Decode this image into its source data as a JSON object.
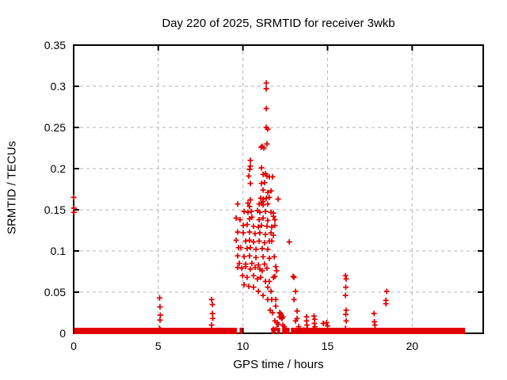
{
  "chart_data": {
    "type": "scatter",
    "title": "Day 220 of 2025, SRMTID for receiver 3wkb",
    "xlabel": "GPS time / hours",
    "ylabel": "SRMTID / TECUs",
    "xlim": [
      0,
      24.2
    ],
    "ylim": [
      0,
      0.35
    ],
    "xticks": [
      0,
      5,
      10,
      15,
      20
    ],
    "xtick_labels": [
      "0",
      "5",
      "10",
      "15",
      "20"
    ],
    "yticks": [
      0,
      0.05,
      0.1,
      0.15,
      0.2,
      0.25,
      0.3,
      0.35
    ],
    "ytick_labels": [
      "0",
      "0.05",
      "0.1",
      "0.15",
      "0.2",
      "0.25",
      "0.3",
      "0.35"
    ],
    "grid": true,
    "legend": "none",
    "marker": {
      "shape": "plus",
      "size": 7
    },
    "colors": {
      "marker": "#e10000",
      "grid": "#b3b3b3",
      "axis": "#000000",
      "background": "#ffffff"
    },
    "series": [
      {
        "name": "SRMTID",
        "points": [
          [
            0.0,
            0.165
          ],
          [
            0.02,
            0.152
          ],
          [
            0.02,
            0.147
          ],
          [
            5.08,
            0.043
          ],
          [
            5.1,
            0.032
          ],
          [
            5.12,
            0.022
          ],
          [
            5.1,
            0.016
          ],
          [
            5.08,
            0.006
          ],
          [
            5.12,
            0.004
          ],
          [
            8.15,
            0.041
          ],
          [
            8.2,
            0.035
          ],
          [
            8.2,
            0.024
          ],
          [
            8.22,
            0.018
          ],
          [
            8.15,
            0.01
          ],
          [
            9.6,
            0.14
          ],
          [
            9.6,
            0.113
          ],
          [
            9.69,
            0.157
          ],
          [
            9.69,
            0.123
          ],
          [
            9.69,
            0.094
          ],
          [
            9.69,
            0.08
          ],
          [
            9.74,
            0.104
          ],
          [
            9.79,
            0.085
          ],
          [
            9.83,
            0.138
          ],
          [
            9.88,
            0.104
          ],
          [
            9.93,
            0.079
          ],
          [
            9.98,
            0.07
          ],
          [
            10.02,
            0.131
          ],
          [
            10.02,
            0.122
          ],
          [
            10.07,
            0.148
          ],
          [
            10.07,
            0.093
          ],
          [
            10.07,
            0.059
          ],
          [
            10.16,
            0.112
          ],
          [
            10.16,
            0.084
          ],
          [
            10.16,
            0.081
          ],
          [
            10.25,
            0.132
          ],
          [
            10.25,
            0.103
          ],
          [
            10.25,
            0.068
          ],
          [
            10.3,
            0.158
          ],
          [
            10.3,
            0.147
          ],
          [
            10.35,
            0.191
          ],
          [
            10.35,
            0.057
          ],
          [
            10.39,
            0.199
          ],
          [
            10.39,
            0.154
          ],
          [
            10.39,
            0.139
          ],
          [
            10.39,
            0.123
          ],
          [
            10.39,
            0.113
          ],
          [
            10.39,
            0.094
          ],
          [
            10.44,
            0.21
          ],
          [
            10.44,
            0.203
          ],
          [
            10.44,
            0.182
          ],
          [
            10.44,
            0.162
          ],
          [
            10.44,
            0.104
          ],
          [
            10.44,
            0.078
          ],
          [
            10.49,
            0.148
          ],
          [
            10.53,
            0.141
          ],
          [
            10.53,
            0.085
          ],
          [
            10.63,
            0.13
          ],
          [
            10.63,
            0.111
          ],
          [
            10.63,
            0.07
          ],
          [
            10.63,
            0.056
          ],
          [
            10.72,
            0.121
          ],
          [
            10.72,
            0.08
          ],
          [
            10.77,
            0.102
          ],
          [
            10.77,
            0.092
          ],
          [
            10.86,
            0.149
          ],
          [
            10.86,
            0.066
          ],
          [
            10.91,
            0.129
          ],
          [
            10.91,
            0.083
          ],
          [
            10.91,
            0.051
          ],
          [
            10.96,
            0.157
          ],
          [
            10.96,
            0.138
          ],
          [
            10.96,
            0.112
          ],
          [
            11.0,
            0.147
          ],
          [
            11.0,
            0.122
          ],
          [
            11.0,
            0.078
          ],
          [
            11.05,
            0.164
          ],
          [
            11.05,
            0.068
          ],
          [
            11.08,
            0.226
          ],
          [
            11.1,
            0.201
          ],
          [
            11.1,
            0.182
          ],
          [
            11.1,
            0.158
          ],
          [
            11.1,
            0.131
          ],
          [
            11.14,
            0.227
          ],
          [
            11.14,
            0.103
          ],
          [
            11.14,
            0.076
          ],
          [
            11.19,
            0.193
          ],
          [
            11.19,
            0.174
          ],
          [
            11.19,
            0.163
          ],
          [
            11.19,
            0.16
          ],
          [
            11.19,
            0.156
          ],
          [
            11.19,
            0.14
          ],
          [
            11.19,
            0.093
          ],
          [
            11.19,
            0.046
          ],
          [
            11.24,
            0.225
          ],
          [
            11.28,
            0.183
          ],
          [
            11.28,
            0.11
          ],
          [
            11.28,
            0.084
          ],
          [
            11.33,
            0.194
          ],
          [
            11.33,
            0.148
          ],
          [
            11.33,
            0.12
          ],
          [
            11.33,
            0.063
          ],
          [
            11.38,
            0.304
          ],
          [
            11.38,
            0.297
          ],
          [
            11.38,
            0.273
          ],
          [
            11.38,
            0.25
          ],
          [
            11.38,
            0.164
          ],
          [
            11.42,
            0.23
          ],
          [
            11.42,
            0.191
          ],
          [
            11.42,
            0.13
          ],
          [
            11.42,
            0.079
          ],
          [
            11.47,
            0.248
          ],
          [
            11.47,
            0.171
          ],
          [
            11.47,
            0.157
          ],
          [
            11.47,
            0.137
          ],
          [
            11.47,
            0.102
          ],
          [
            11.47,
            0.056
          ],
          [
            11.47,
            0.041
          ],
          [
            11.56,
            0.19
          ],
          [
            11.56,
            0.165
          ],
          [
            11.56,
            0.112
          ],
          [
            11.56,
            0.091
          ],
          [
            11.56,
            0.063
          ],
          [
            11.61,
            0.028
          ],
          [
            11.66,
            0.173
          ],
          [
            11.66,
            0.147
          ],
          [
            11.66,
            0.122
          ],
          [
            11.66,
            0.051
          ],
          [
            11.7,
            0.129
          ],
          [
            11.7,
            0.112
          ],
          [
            11.7,
            0.041
          ],
          [
            11.75,
            0.19
          ],
          [
            11.75,
            0.025
          ],
          [
            11.8,
            0.146
          ],
          [
            11.8,
            0.142
          ],
          [
            11.8,
            0.119
          ],
          [
            11.8,
            0.068
          ],
          [
            11.8,
            0.005
          ],
          [
            11.85,
            0.093
          ],
          [
            11.89,
            0.138
          ],
          [
            11.89,
            0.131
          ],
          [
            11.89,
            0.069
          ],
          [
            11.89,
            0.015
          ],
          [
            11.9,
            0.004
          ],
          [
            11.94,
            0.081
          ],
          [
            11.94,
            0.041
          ],
          [
            11.94,
            0.033
          ],
          [
            11.99,
            0.076
          ],
          [
            12.0,
            0.006
          ],
          [
            12.03,
            0.013
          ],
          [
            12.08,
            0.163
          ],
          [
            12.08,
            0.011
          ],
          [
            12.17,
            0.025
          ],
          [
            12.17,
            0.02
          ],
          [
            12.22,
            0.024
          ],
          [
            12.27,
            0.022
          ],
          [
            12.27,
            0.019
          ],
          [
            12.31,
            0.018
          ],
          [
            12.36,
            0.02
          ],
          [
            12.36,
            0.01
          ],
          [
            12.45,
            0.008
          ],
          [
            12.5,
            0.004
          ],
          [
            12.74,
            0.111
          ],
          [
            12.97,
            0.069
          ],
          [
            13.02,
            0.068
          ],
          [
            13.02,
            0.041
          ],
          [
            13.11,
            0.051
          ],
          [
            13.11,
            0.015
          ],
          [
            13.2,
            0.027
          ],
          [
            13.2,
            0.018
          ],
          [
            13.3,
            0.008
          ],
          [
            13.6,
            0.004
          ],
          [
            13.76,
            0.02
          ],
          [
            13.76,
            0.015
          ],
          [
            13.78,
            0.01
          ],
          [
            13.81,
            0.006
          ],
          [
            14.2,
            0.021
          ],
          [
            14.24,
            0.017
          ],
          [
            14.22,
            0.012
          ],
          [
            14.26,
            0.008
          ],
          [
            14.2,
            0.005
          ],
          [
            14.75,
            0.012
          ],
          [
            14.94,
            0.013
          ],
          [
            15.0,
            0.009
          ],
          [
            16.06,
            0.07
          ],
          [
            16.1,
            0.066
          ],
          [
            16.08,
            0.056
          ],
          [
            16.06,
            0.046
          ],
          [
            16.1,
            0.028
          ],
          [
            16.08,
            0.023
          ],
          [
            16.1,
            0.015
          ],
          [
            16.06,
            0.006
          ],
          [
            17.75,
            0.024
          ],
          [
            17.77,
            0.014
          ],
          [
            17.8,
            0.01
          ],
          [
            18.5,
            0.051
          ],
          [
            18.45,
            0.04
          ],
          [
            18.45,
            0.036
          ]
        ],
        "baseline_segments": [
          [
            0.02,
            9.65
          ],
          [
            9.8,
            9.98
          ],
          [
            11.68,
            11.88
          ],
          [
            12.02,
            12.2
          ],
          [
            12.32,
            12.76
          ],
          [
            12.84,
            23.13
          ]
        ]
      }
    ]
  }
}
